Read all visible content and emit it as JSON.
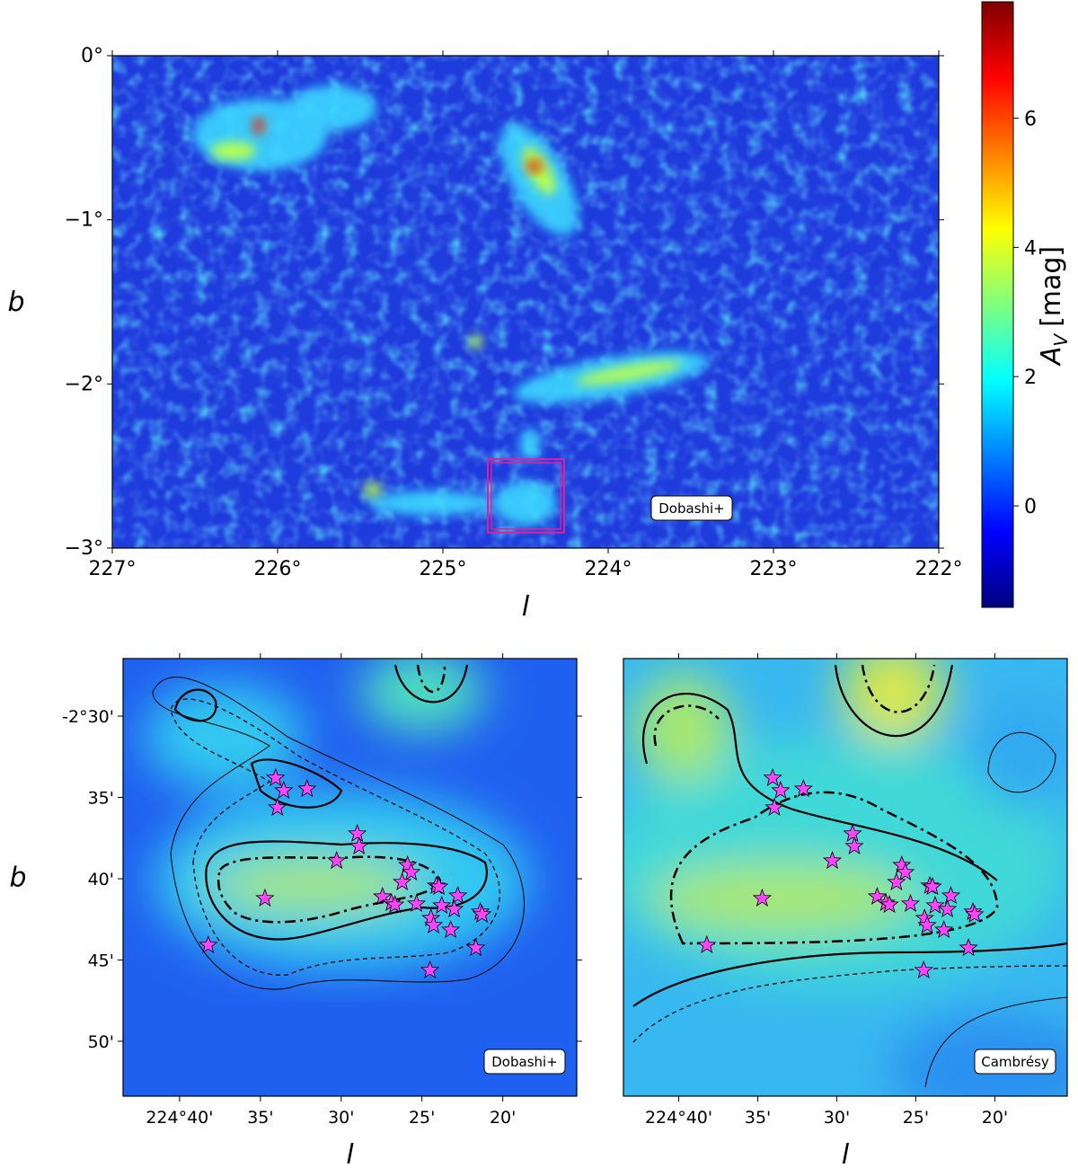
{
  "chart_data": [
    {
      "type": "heatmap",
      "x_label": "l",
      "y_label": "b",
      "annotation": "Dobashi+",
      "xlim": [
        227,
        222
      ],
      "ylim": [
        -3,
        0
      ],
      "xticks": [
        {
          "value": 227,
          "label": "227°"
        },
        {
          "value": 226,
          "label": "226°"
        },
        {
          "value": 225,
          "label": "225°"
        },
        {
          "value": 224,
          "label": "224°"
        },
        {
          "value": 223,
          "label": "223°"
        },
        {
          "value": 222,
          "label": "222°"
        }
      ],
      "yticks": [
        {
          "value": 0,
          "label": "0°"
        },
        {
          "value": -1,
          "label": "−1°"
        },
        {
          "value": -2,
          "label": "−2°"
        },
        {
          "value": -3,
          "label": "−3°"
        }
      ],
      "box": {
        "color": "#e0209a",
        "x": [
          224.728,
          224.266
        ],
        "y": [
          -2.458,
          -2.906
        ]
      },
      "colorbar": {
        "label": "A",
        "label_sub": "V",
        "label_unit": "[mag]",
        "vlim": [
          -1.57,
          7.8
        ],
        "ticks": [
          0,
          2,
          4,
          6
        ]
      }
    },
    {
      "type": "heatmap",
      "x_label": "l",
      "y_label": "b",
      "annotation": "Dobashi+",
      "xlim": [
        224.725,
        224.257
      ],
      "ylim": [
        -2.8895,
        -2.441
      ],
      "xticks": [
        {
          "value": 224.6667,
          "label": "224°40'"
        },
        {
          "value": 224.5833,
          "label": "35'"
        },
        {
          "value": 224.5,
          "label": "30'"
        },
        {
          "value": 224.4167,
          "label": "25'"
        },
        {
          "value": 224.3333,
          "label": "20'"
        }
      ],
      "yticks": [
        {
          "value": -2.5,
          "label": "-2°30'"
        },
        {
          "value": -2.5833,
          "label": "35'"
        },
        {
          "value": -2.6667,
          "label": "40'"
        },
        {
          "value": -2.75,
          "label": "45'"
        },
        {
          "value": -2.8333,
          "label": "50'"
        }
      ],
      "stars": {
        "color": "#ff44ff",
        "x": [
          224.5676,
          224.5593,
          224.5352,
          224.5658,
          224.4834,
          224.4815,
          224.5047,
          224.4315,
          224.4278,
          224.4371,
          224.4574,
          224.4482,
          224.4445,
          224.4223,
          224.4019,
          224.3991,
          224.3797,
          224.3963,
          224.3834,
          224.3565,
          224.3547,
          224.4074,
          224.4047,
          224.3871,
          224.5787,
          224.6371,
          224.3611,
          224.4084
        ],
        "y": [
          -2.5635,
          -2.5764,
          -2.5746,
          -2.5939,
          -2.6206,
          -2.6335,
          -2.6483,
          -2.6529,
          -2.6602,
          -2.6703,
          -2.6851,
          -2.6915,
          -2.6934,
          -2.6924,
          -2.674,
          -2.675,
          -2.6842,
          -2.6943,
          -2.698,
          -2.7007,
          -2.7035,
          -2.7072,
          -2.7145,
          -2.7192,
          -2.6869,
          -2.7348,
          -2.7376,
          -2.7606
        ]
      }
    },
    {
      "type": "heatmap",
      "x_label": "l",
      "annotation": "Cambrésy",
      "xlim": [
        224.725,
        224.257
      ],
      "ylim": [
        -2.8895,
        -2.441
      ],
      "xticks": [
        {
          "value": 224.6667,
          "label": "224°40'"
        },
        {
          "value": 224.5833,
          "label": "35'"
        },
        {
          "value": 224.5,
          "label": "30'"
        },
        {
          "value": 224.4167,
          "label": "25'"
        },
        {
          "value": 224.3333,
          "label": "20'"
        }
      ],
      "stars": {
        "color": "#ff44ff",
        "x": [
          224.5676,
          224.5593,
          224.5352,
          224.5658,
          224.4834,
          224.4815,
          224.5047,
          224.4315,
          224.4278,
          224.4371,
          224.4574,
          224.4482,
          224.4445,
          224.4223,
          224.4019,
          224.3991,
          224.3797,
          224.3963,
          224.3834,
          224.3565,
          224.3547,
          224.4074,
          224.4047,
          224.3871,
          224.5787,
          224.6371,
          224.3611,
          224.4084
        ],
        "y": [
          -2.5635,
          -2.5764,
          -2.5746,
          -2.5939,
          -2.6206,
          -2.6335,
          -2.6483,
          -2.6529,
          -2.6602,
          -2.6703,
          -2.6851,
          -2.6915,
          -2.6934,
          -2.6924,
          -2.674,
          -2.675,
          -2.6842,
          -2.6943,
          -2.698,
          -2.7007,
          -2.7035,
          -2.7072,
          -2.7145,
          -2.7192,
          -2.6869,
          -2.7348,
          -2.7376,
          -2.7606
        ]
      }
    }
  ]
}
